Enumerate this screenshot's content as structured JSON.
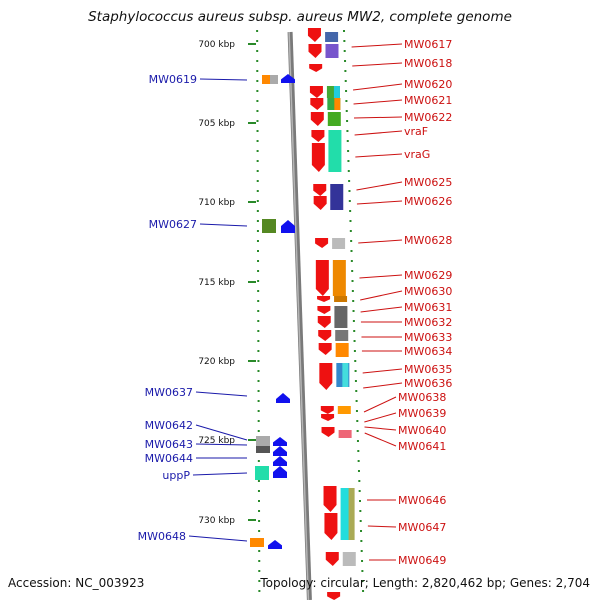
{
  "title": "Staphylococcus aureus subsp. aureus MW2, complete genome",
  "accession": "Accession: NC_003923",
  "topology": "Topology: circular; Length: 2,820,462 bp; Genes: 2,704",
  "scale_labels": [
    "700 kbp",
    "705 kbp",
    "710 kbp",
    "715 kbp",
    "720 kbp",
    "725 kbp",
    "730 kbp"
  ],
  "left_labels": [
    "MW0619",
    "MW0627",
    "MW0637",
    "MW0642",
    "MW0643",
    "MW0644",
    "uppP",
    "MW0648"
  ],
  "right_labels": [
    "MW0617",
    "MW0618",
    "MW0620",
    "MW0621",
    "MW0622",
    "vraF",
    "vraG",
    "MW0625",
    "MW0626",
    "MW0628",
    "MW0629",
    "MW0630",
    "MW0631",
    "MW0632",
    "MW0633",
    "MW0634",
    "MW0635",
    "MW0636",
    "MW0638",
    "MW0639",
    "MW0640",
    "MW0641",
    "MW0646",
    "MW0647",
    "MW0649"
  ],
  "colors": {
    "forward_gene": "#ee1111",
    "reverse_gene": "#1111ee",
    "left_label": "#1a1aaa",
    "right_label": "#cc1111",
    "backbone": "#888888",
    "tick": "#2a8a2a"
  }
}
